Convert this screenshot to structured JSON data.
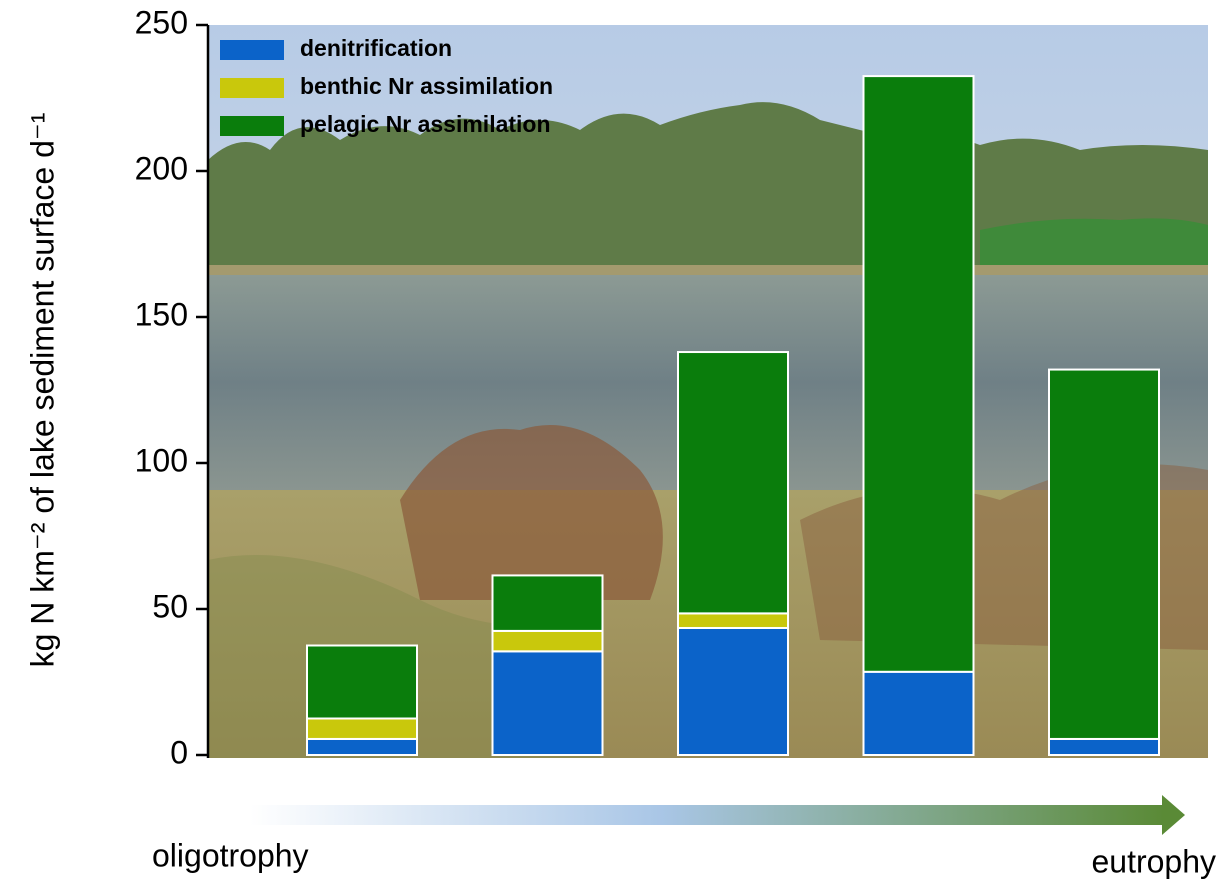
{
  "chart_data": {
    "type": "stacked-bar",
    "y_label": "kg N km⁻² of lake sediment surface d⁻¹",
    "categories": [
      null,
      null,
      null,
      null,
      null
    ],
    "series": [
      {
        "name": "denitrification",
        "color": "#0b63c9",
        "values": [
          5.5,
          35.5,
          43.5,
          28.5,
          5.5
        ]
      },
      {
        "name": "benthic Nr assimilation",
        "color": "#c9c80c",
        "values": [
          7,
          7,
          5,
          0,
          0
        ]
      },
      {
        "name": "pelagic Nr assimilation",
        "color": "#0a7d0c",
        "values": [
          25,
          19,
          89.5,
          204,
          126.5
        ]
      }
    ],
    "ylim": [
      0,
      250
    ],
    "yticks": [
      0,
      50,
      100,
      150,
      200,
      250
    ],
    "legend": "upper-left",
    "annotations": {
      "start": "oligotrophy",
      "end": "eutrophy"
    }
  }
}
